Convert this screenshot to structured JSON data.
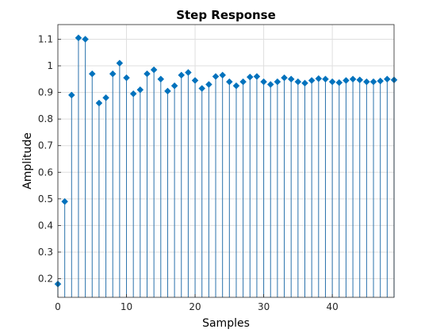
{
  "chart_data": {
    "type": "stem",
    "title": "Step Response",
    "xlabel": "Samples",
    "ylabel": "Amplitude",
    "xlim": [
      0,
      49
    ],
    "ylim": [
      0.13,
      1.155
    ],
    "x_ticks": [
      0,
      10,
      20,
      30,
      40
    ],
    "y_ticks": [
      0.2,
      0.3,
      0.4,
      0.5,
      0.6,
      0.7,
      0.8,
      0.9,
      1,
      1.1
    ],
    "grid": true,
    "stem_color": "#2a72ac",
    "marker_color": "#0072bd",
    "marker": "diamond",
    "x": [
      0,
      1,
      2,
      3,
      4,
      5,
      6,
      7,
      8,
      9,
      10,
      11,
      12,
      13,
      14,
      15,
      16,
      17,
      18,
      19,
      20,
      21,
      22,
      23,
      24,
      25,
      26,
      27,
      28,
      29,
      30,
      31,
      32,
      33,
      34,
      35,
      36,
      37,
      38,
      39,
      40,
      41,
      42,
      43,
      44,
      45,
      46,
      47,
      48,
      49
    ],
    "values": [
      0.18,
      0.49,
      0.89,
      1.105,
      1.1,
      0.97,
      0.86,
      0.88,
      0.97,
      1.01,
      0.955,
      0.895,
      0.91,
      0.97,
      0.985,
      0.95,
      0.905,
      0.925,
      0.965,
      0.975,
      0.945,
      0.915,
      0.93,
      0.96,
      0.965,
      0.94,
      0.925,
      0.94,
      0.958,
      0.96,
      0.94,
      0.93,
      0.94,
      0.955,
      0.95,
      0.94,
      0.935,
      0.945,
      0.952,
      0.95,
      0.94,
      0.937,
      0.945,
      0.95,
      0.947,
      0.94,
      0.94,
      0.943,
      0.95,
      0.947
    ]
  }
}
